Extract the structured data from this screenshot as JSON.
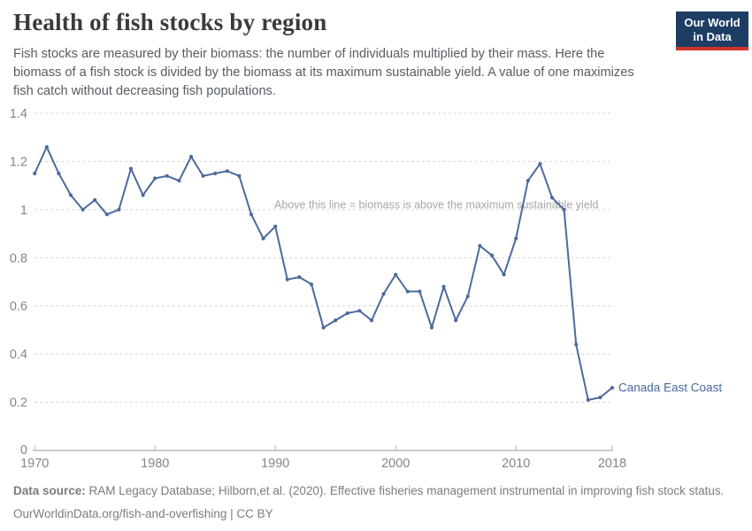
{
  "header": {
    "title": "Health of fish stocks by region",
    "subtitle": "Fish stocks are measured by their biomass: the number of individuals multiplied by their mass. Here the biomass of a fish stock is divided by the biomass at its maximum sustainable yield. A value of one maximizes fish catch without decreasing fish populations.",
    "logo": {
      "line1": "Our World",
      "line2": "in Data",
      "bg_color": "#1d3d63",
      "bar_color": "#cf342b"
    }
  },
  "chart_data": {
    "type": "line",
    "title": "Health of fish stocks by region",
    "xlabel": "",
    "ylabel": "",
    "xlim": [
      1970,
      2018
    ],
    "ylim": [
      0,
      1.4
    ],
    "grid": "dashed-horizontal",
    "x_ticks": [
      1970,
      1980,
      1990,
      2000,
      2010,
      2018
    ],
    "y_ticks": [
      0,
      0.2,
      0.4,
      0.6,
      0.8,
      1,
      1.2,
      1.4
    ],
    "annotation": {
      "text": "Above this line = biomass is above the maximum sustainable yield",
      "at_value": 1
    },
    "series": [
      {
        "name": "Canada East Coast",
        "color": "#4c6a9c",
        "x": [
          1970,
          1971,
          1972,
          1973,
          1974,
          1975,
          1976,
          1977,
          1978,
          1979,
          1980,
          1981,
          1982,
          1983,
          1984,
          1985,
          1986,
          1987,
          1988,
          1989,
          1990,
          1991,
          1992,
          1993,
          1994,
          1995,
          1996,
          1997,
          1998,
          1999,
          2000,
          2001,
          2002,
          2003,
          2004,
          2005,
          2006,
          2007,
          2008,
          2009,
          2010,
          2011,
          2012,
          2013,
          2014,
          2015,
          2016,
          2017,
          2018
        ],
        "values": [
          1.15,
          1.26,
          1.15,
          1.06,
          1.0,
          1.04,
          0.98,
          1.0,
          1.17,
          1.06,
          1.13,
          1.14,
          1.12,
          1.22,
          1.14,
          1.15,
          1.16,
          1.14,
          0.98,
          0.88,
          0.93,
          0.71,
          0.72,
          0.69,
          0.51,
          0.54,
          0.57,
          0.58,
          0.54,
          0.65,
          0.73,
          0.66,
          0.66,
          0.51,
          0.68,
          0.54,
          0.64,
          0.85,
          0.81,
          0.73,
          0.88,
          1.12,
          1.19,
          1.05,
          1.0,
          0.44,
          0.21,
          0.22,
          0.26
        ]
      }
    ]
  },
  "footer": {
    "source_label": "Data source:",
    "source_text": " RAM Legacy Database; Hilborn,et al. (2020). Effective fisheries management instrumental in improving fish stock status.",
    "link_line": "OurWorldinData.org/fish-and-overfishing | CC BY"
  },
  "colors": {
    "series": "#4c6a9c",
    "grid": "#d6d6d6",
    "axis": "#9a9a9a",
    "tick_label": "#858585",
    "annotation": "#a7a7a7"
  }
}
